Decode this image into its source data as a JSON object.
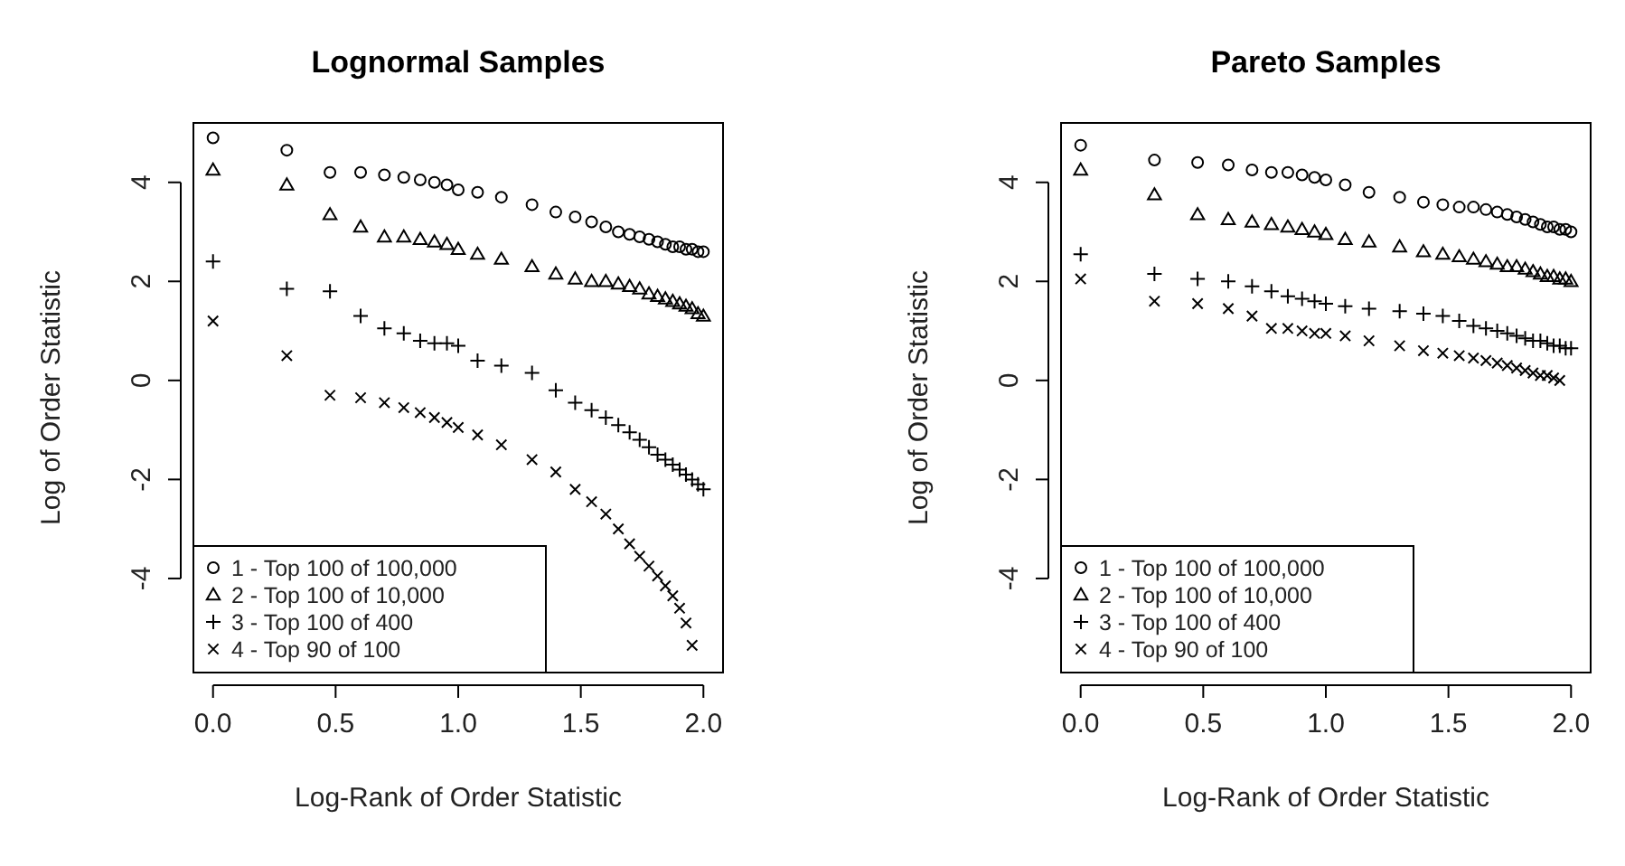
{
  "chart_data": [
    {
      "type": "scatter",
      "title": "Lognormal Samples",
      "xlabel": "Log-Rank of Order Statistic",
      "ylabel": "Log of Order Statistic",
      "xlim": [
        -0.08,
        2.08
      ],
      "ylim": [
        -5.9,
        5.2
      ],
      "xticks": [
        {
          "value": 0,
          "label": "0.0"
        },
        {
          "value": 0.5,
          "label": "0.5"
        },
        {
          "value": 1,
          "label": "1.0"
        },
        {
          "value": 1.5,
          "label": "1.5"
        },
        {
          "value": 2,
          "label": "2.0"
        }
      ],
      "yticks": [
        -4,
        -2,
        0,
        2,
        4
      ],
      "grid": false,
      "legend": "bottom left",
      "series": [
        {
          "name": "1 - Top 100 of 100,000",
          "color": "#000000",
          "marker": "circle",
          "x": [
            0,
            0.301,
            0.477,
            0.602,
            0.699,
            0.778,
            0.845,
            0.903,
            0.954,
            1,
            1.079,
            1.176,
            1.301,
            1.398,
            1.477,
            1.544,
            1.602,
            1.653,
            1.699,
            1.74,
            1.778,
            1.813,
            1.845,
            1.875,
            1.903,
            1.929,
            1.954,
            1.978,
            2
          ],
          "values": [
            4.9,
            4.65,
            4.2,
            4.2,
            4.15,
            4.1,
            4.05,
            4.0,
            3.95,
            3.85,
            3.8,
            3.7,
            3.55,
            3.4,
            3.3,
            3.2,
            3.1,
            3.0,
            2.95,
            2.9,
            2.85,
            2.8,
            2.75,
            2.7,
            2.7,
            2.65,
            2.65,
            2.6,
            2.6
          ]
        },
        {
          "name": "2 - Top 100 of 10,000",
          "color": "#000000",
          "marker": "triangle",
          "x": [
            0,
            0.301,
            0.477,
            0.602,
            0.699,
            0.778,
            0.845,
            0.903,
            0.954,
            1,
            1.079,
            1.176,
            1.301,
            1.398,
            1.477,
            1.544,
            1.602,
            1.653,
            1.699,
            1.74,
            1.778,
            1.813,
            1.845,
            1.875,
            1.903,
            1.929,
            1.954,
            1.978,
            2
          ],
          "values": [
            4.25,
            3.95,
            3.35,
            3.1,
            2.9,
            2.9,
            2.85,
            2.8,
            2.75,
            2.65,
            2.55,
            2.45,
            2.3,
            2.15,
            2.05,
            2.0,
            2.0,
            1.95,
            1.9,
            1.85,
            1.75,
            1.7,
            1.65,
            1.6,
            1.55,
            1.5,
            1.45,
            1.35,
            1.3
          ]
        },
        {
          "name": "3 - Top 100 of 400",
          "color": "#000000",
          "marker": "cross",
          "x": [
            0,
            0.301,
            0.477,
            0.602,
            0.699,
            0.778,
            0.845,
            0.903,
            0.954,
            1,
            1.079,
            1.176,
            1.301,
            1.398,
            1.477,
            1.544,
            1.602,
            1.653,
            1.699,
            1.74,
            1.778,
            1.813,
            1.845,
            1.875,
            1.903,
            1.929,
            1.954,
            1.978,
            2
          ],
          "values": [
            2.4,
            1.85,
            1.8,
            1.3,
            1.05,
            0.95,
            0.8,
            0.75,
            0.75,
            0.7,
            0.4,
            0.3,
            0.15,
            -0.2,
            -0.45,
            -0.6,
            -0.75,
            -0.9,
            -1.05,
            -1.2,
            -1.35,
            -1.5,
            -1.6,
            -1.7,
            -1.8,
            -1.9,
            -2.0,
            -2.1,
            -2.2
          ]
        },
        {
          "name": "4 - Top 90 of 100",
          "color": "#000000",
          "marker": "x",
          "x": [
            0,
            0.301,
            0.477,
            0.602,
            0.699,
            0.778,
            0.845,
            0.903,
            0.954,
            1,
            1.079,
            1.176,
            1.301,
            1.398,
            1.477,
            1.544,
            1.602,
            1.653,
            1.699,
            1.74,
            1.778,
            1.813,
            1.845,
            1.875,
            1.903,
            1.929,
            1.954
          ],
          "values": [
            1.2,
            0.5,
            -0.3,
            -0.35,
            -0.45,
            -0.55,
            -0.65,
            -0.75,
            -0.85,
            -0.95,
            -1.1,
            -1.3,
            -1.6,
            -1.85,
            -2.2,
            -2.45,
            -2.7,
            -3.0,
            -3.3,
            -3.55,
            -3.75,
            -3.95,
            -4.15,
            -4.35,
            -4.6,
            -4.9,
            -5.35
          ]
        }
      ]
    },
    {
      "type": "scatter",
      "title": "Pareto Samples",
      "xlabel": "Log-Rank of Order Statistic",
      "ylabel": "Log of Order Statistic",
      "xlim": [
        -0.08,
        2.08
      ],
      "ylim": [
        -5.9,
        5.2
      ],
      "xticks": [
        {
          "value": 0,
          "label": "0.0"
        },
        {
          "value": 0.5,
          "label": "0.5"
        },
        {
          "value": 1,
          "label": "1.0"
        },
        {
          "value": 1.5,
          "label": "1.5"
        },
        {
          "value": 2,
          "label": "2.0"
        }
      ],
      "yticks": [
        -4,
        -2,
        0,
        2,
        4
      ],
      "grid": false,
      "legend": "bottom left",
      "series": [
        {
          "name": "1 - Top 100 of 100,000",
          "color": "#000000",
          "marker": "circle",
          "x": [
            0,
            0.301,
            0.477,
            0.602,
            0.699,
            0.778,
            0.845,
            0.903,
            0.954,
            1,
            1.079,
            1.176,
            1.301,
            1.398,
            1.477,
            1.544,
            1.602,
            1.653,
            1.699,
            1.74,
            1.778,
            1.813,
            1.845,
            1.875,
            1.903,
            1.929,
            1.954,
            1.978,
            2
          ],
          "values": [
            4.75,
            4.45,
            4.4,
            4.35,
            4.25,
            4.2,
            4.2,
            4.15,
            4.1,
            4.05,
            3.95,
            3.8,
            3.7,
            3.6,
            3.55,
            3.5,
            3.5,
            3.45,
            3.4,
            3.35,
            3.3,
            3.25,
            3.2,
            3.15,
            3.1,
            3.1,
            3.05,
            3.05,
            3.0
          ]
        },
        {
          "name": "2 - Top 100 of 10,000",
          "color": "#000000",
          "marker": "triangle",
          "x": [
            0,
            0.301,
            0.477,
            0.602,
            0.699,
            0.778,
            0.845,
            0.903,
            0.954,
            1,
            1.079,
            1.176,
            1.301,
            1.398,
            1.477,
            1.544,
            1.602,
            1.653,
            1.699,
            1.74,
            1.778,
            1.813,
            1.845,
            1.875,
            1.903,
            1.929,
            1.954,
            1.978,
            2
          ],
          "values": [
            4.25,
            3.75,
            3.35,
            3.25,
            3.2,
            3.15,
            3.1,
            3.05,
            3.0,
            2.95,
            2.85,
            2.8,
            2.7,
            2.6,
            2.55,
            2.5,
            2.45,
            2.4,
            2.35,
            2.3,
            2.3,
            2.25,
            2.2,
            2.15,
            2.1,
            2.1,
            2.05,
            2.05,
            2.0
          ]
        },
        {
          "name": "3 - Top 100 of 400",
          "color": "#000000",
          "marker": "cross",
          "x": [
            0,
            0.301,
            0.477,
            0.602,
            0.699,
            0.778,
            0.845,
            0.903,
            0.954,
            1,
            1.079,
            1.176,
            1.301,
            1.398,
            1.477,
            1.544,
            1.602,
            1.653,
            1.699,
            1.74,
            1.778,
            1.813,
            1.845,
            1.875,
            1.903,
            1.929,
            1.954,
            1.978,
            2
          ],
          "values": [
            2.55,
            2.15,
            2.05,
            2.0,
            1.9,
            1.8,
            1.7,
            1.65,
            1.6,
            1.55,
            1.5,
            1.45,
            1.4,
            1.35,
            1.3,
            1.2,
            1.1,
            1.05,
            1.0,
            0.95,
            0.9,
            0.85,
            0.8,
            0.8,
            0.75,
            0.7,
            0.7,
            0.65,
            0.65
          ]
        },
        {
          "name": "4 - Top 90 of 100",
          "color": "#000000",
          "marker": "x",
          "x": [
            0,
            0.301,
            0.477,
            0.602,
            0.699,
            0.778,
            0.845,
            0.903,
            0.954,
            1,
            1.079,
            1.176,
            1.301,
            1.398,
            1.477,
            1.544,
            1.602,
            1.653,
            1.699,
            1.74,
            1.778,
            1.813,
            1.845,
            1.875,
            1.903,
            1.929,
            1.954
          ],
          "values": [
            2.05,
            1.6,
            1.55,
            1.45,
            1.3,
            1.05,
            1.05,
            1.0,
            0.95,
            0.95,
            0.9,
            0.8,
            0.7,
            0.6,
            0.55,
            0.5,
            0.45,
            0.4,
            0.35,
            0.3,
            0.25,
            0.2,
            0.15,
            0.1,
            0.1,
            0.05,
            0.0
          ]
        }
      ]
    }
  ]
}
